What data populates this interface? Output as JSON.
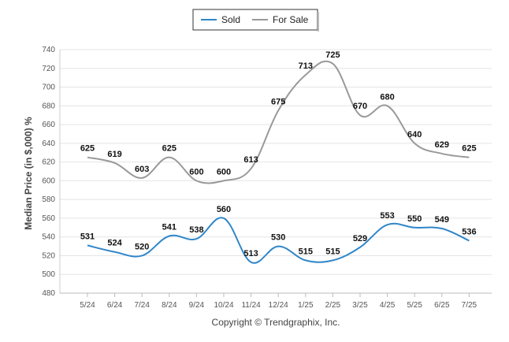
{
  "chart_data": {
    "type": "line",
    "categories": [
      "5/24",
      "6/24",
      "7/24",
      "8/24",
      "9/24",
      "10/24",
      "11/24",
      "12/24",
      "1/25",
      "2/25",
      "3/25",
      "4/25",
      "5/25",
      "6/25",
      "7/25"
    ],
    "series": [
      {
        "name": "Sold",
        "color": "#2f86c8",
        "values": [
          531,
          524,
          520,
          541,
          538,
          560,
          513,
          530,
          515,
          515,
          529,
          553,
          550,
          549,
          536
        ]
      },
      {
        "name": "For Sale",
        "color": "#999999",
        "values": [
          625,
          619,
          603,
          625,
          600,
          600,
          613,
          675,
          713,
          725,
          670,
          680,
          640,
          629,
          625
        ]
      }
    ],
    "ylabel": "Median Price (in $,000) %",
    "ylim": [
      480,
      740
    ],
    "yticks": [
      480,
      500,
      520,
      540,
      560,
      580,
      600,
      620,
      640,
      660,
      680,
      700,
      720,
      740
    ],
    "grid": true,
    "legend_position": "top-center",
    "copyright": "Copyright © Trendgraphix, Inc."
  }
}
